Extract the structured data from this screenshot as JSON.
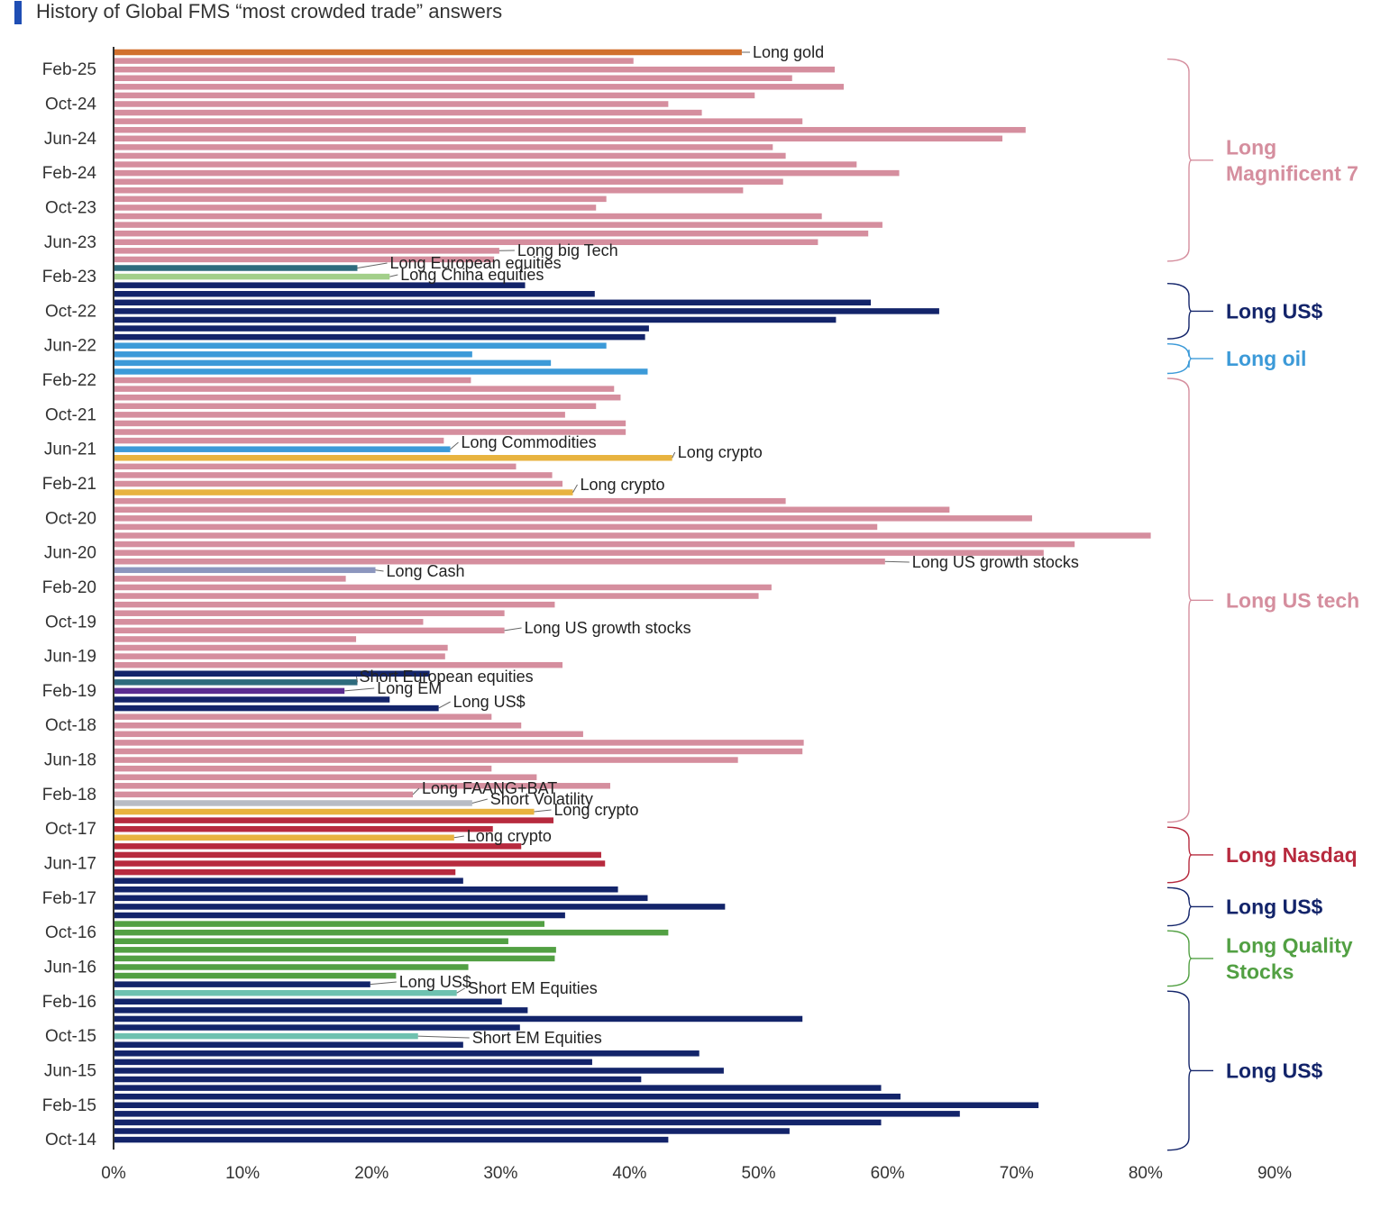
{
  "chart_data": {
    "type": "bar",
    "orientation": "horizontal",
    "title": "History of Global FMS “most crowded trade” answers",
    "xlim": [
      0,
      90
    ],
    "x_ticks": [
      "0%",
      "10%",
      "20%",
      "30%",
      "40%",
      "50%",
      "60%",
      "70%",
      "80%",
      "90%"
    ],
    "y_tick_labels": [
      "Feb-25",
      "Oct-24",
      "Jun-24",
      "Feb-24",
      "Oct-23",
      "Jun-23",
      "Feb-23",
      "Oct-22",
      "Jun-22",
      "Feb-22",
      "Oct-21",
      "Jun-21",
      "Feb-21",
      "Oct-20",
      "Jun-20",
      "Feb-20",
      "Oct-19",
      "Jun-19",
      "Feb-19",
      "Oct-18",
      "Jun-18",
      "Feb-18",
      "Oct-17",
      "Jun-17",
      "Feb-17",
      "Oct-16",
      "Jun-16",
      "Feb-16",
      "Oct-15",
      "Jun-15",
      "Feb-15",
      "Oct-14"
    ],
    "grid": false,
    "colors": {
      "pink": "#D58E9E",
      "navy": "#13246A",
      "lightblue": "#3C9AD8",
      "red": "#B72A3E",
      "green": "#52A043",
      "gold": "#E8B33F",
      "orange": "#D1702E",
      "teal": "#2E6B7D",
      "lightgreen": "#A2CF8A",
      "greyblue": "#8C96BE",
      "purple": "#5B2D91",
      "grey": "#B8BCC4",
      "tealgreen": "#6EC1B0"
    },
    "bars": [
      {
        "value": 48.7,
        "color": "orange"
      },
      {
        "value": 40.3,
        "color": "pink"
      },
      {
        "value": 55.9,
        "color": "pink"
      },
      {
        "value": 52.6,
        "color": "pink"
      },
      {
        "value": 56.6,
        "color": "pink"
      },
      {
        "value": 49.7,
        "color": "pink"
      },
      {
        "value": 43.0,
        "color": "pink"
      },
      {
        "value": 45.6,
        "color": "pink"
      },
      {
        "value": 53.4,
        "color": "pink"
      },
      {
        "value": 70.7,
        "color": "pink"
      },
      {
        "value": 68.9,
        "color": "pink"
      },
      {
        "value": 51.1,
        "color": "pink"
      },
      {
        "value": 52.1,
        "color": "pink"
      },
      {
        "value": 57.6,
        "color": "pink"
      },
      {
        "value": 60.9,
        "color": "pink"
      },
      {
        "value": 51.9,
        "color": "pink"
      },
      {
        "value": 48.8,
        "color": "pink"
      },
      {
        "value": 38.2,
        "color": "pink"
      },
      {
        "value": 37.4,
        "color": "pink"
      },
      {
        "value": 54.9,
        "color": "pink"
      },
      {
        "value": 59.6,
        "color": "pink"
      },
      {
        "value": 58.5,
        "color": "pink"
      },
      {
        "value": 54.6,
        "color": "pink"
      },
      {
        "value": 29.9,
        "color": "pink"
      },
      {
        "value": 29.5,
        "color": "pink"
      },
      {
        "value": 18.9,
        "color": "teal"
      },
      {
        "value": 21.4,
        "color": "lightgreen"
      },
      {
        "value": 31.9,
        "color": "navy"
      },
      {
        "value": 37.3,
        "color": "navy"
      },
      {
        "value": 58.7,
        "color": "navy"
      },
      {
        "value": 64.0,
        "color": "navy"
      },
      {
        "value": 56.0,
        "color": "navy"
      },
      {
        "value": 41.5,
        "color": "navy"
      },
      {
        "value": 41.2,
        "color": "navy"
      },
      {
        "value": 38.2,
        "color": "lightblue"
      },
      {
        "value": 27.8,
        "color": "lightblue"
      },
      {
        "value": 33.9,
        "color": "lightblue"
      },
      {
        "value": 41.4,
        "color": "lightblue"
      },
      {
        "value": 27.7,
        "color": "pink"
      },
      {
        "value": 38.8,
        "color": "pink"
      },
      {
        "value": 39.3,
        "color": "pink"
      },
      {
        "value": 37.4,
        "color": "pink"
      },
      {
        "value": 35.0,
        "color": "pink"
      },
      {
        "value": 39.7,
        "color": "pink"
      },
      {
        "value": 39.7,
        "color": "pink"
      },
      {
        "value": 25.6,
        "color": "pink"
      },
      {
        "value": 26.1,
        "color": "lightblue"
      },
      {
        "value": 43.3,
        "color": "gold"
      },
      {
        "value": 31.2,
        "color": "pink"
      },
      {
        "value": 34.0,
        "color": "pink"
      },
      {
        "value": 34.8,
        "color": "pink"
      },
      {
        "value": 35.6,
        "color": "gold"
      },
      {
        "value": 52.1,
        "color": "pink"
      },
      {
        "value": 64.8,
        "color": "pink"
      },
      {
        "value": 71.2,
        "color": "pink"
      },
      {
        "value": 59.2,
        "color": "pink"
      },
      {
        "value": 80.4,
        "color": "pink"
      },
      {
        "value": 74.5,
        "color": "pink"
      },
      {
        "value": 72.1,
        "color": "pink"
      },
      {
        "value": 59.8,
        "color": "pink"
      },
      {
        "value": 20.3,
        "color": "greyblue"
      },
      {
        "value": 18.0,
        "color": "pink"
      },
      {
        "value": 51.0,
        "color": "pink"
      },
      {
        "value": 50.0,
        "color": "pink"
      },
      {
        "value": 34.2,
        "color": "pink"
      },
      {
        "value": 30.3,
        "color": "pink"
      },
      {
        "value": 24.0,
        "color": "pink"
      },
      {
        "value": 30.3,
        "color": "pink"
      },
      {
        "value": 18.8,
        "color": "pink"
      },
      {
        "value": 25.9,
        "color": "pink"
      },
      {
        "value": 25.7,
        "color": "pink"
      },
      {
        "value": 34.8,
        "color": "pink"
      },
      {
        "value": 24.5,
        "color": "navy"
      },
      {
        "value": 18.9,
        "color": "teal"
      },
      {
        "value": 17.9,
        "color": "purple"
      },
      {
        "value": 21.4,
        "color": "navy"
      },
      {
        "value": 25.2,
        "color": "navy"
      },
      {
        "value": 29.3,
        "color": "pink"
      },
      {
        "value": 31.6,
        "color": "pink"
      },
      {
        "value": 36.4,
        "color": "pink"
      },
      {
        "value": 53.5,
        "color": "pink"
      },
      {
        "value": 53.4,
        "color": "pink"
      },
      {
        "value": 48.4,
        "color": "pink"
      },
      {
        "value": 29.3,
        "color": "pink"
      },
      {
        "value": 32.8,
        "color": "pink"
      },
      {
        "value": 38.5,
        "color": "pink"
      },
      {
        "value": 23.2,
        "color": "pink"
      },
      {
        "value": 27.8,
        "color": "grey"
      },
      {
        "value": 32.6,
        "color": "gold"
      },
      {
        "value": 34.1,
        "color": "red"
      },
      {
        "value": 29.4,
        "color": "red"
      },
      {
        "value": 26.4,
        "color": "gold"
      },
      {
        "value": 31.6,
        "color": "red"
      },
      {
        "value": 37.8,
        "color": "red"
      },
      {
        "value": 38.1,
        "color": "red"
      },
      {
        "value": 26.5,
        "color": "red"
      },
      {
        "value": 27.1,
        "color": "navy"
      },
      {
        "value": 39.1,
        "color": "navy"
      },
      {
        "value": 41.4,
        "color": "navy"
      },
      {
        "value": 47.4,
        "color": "navy"
      },
      {
        "value": 35.0,
        "color": "navy"
      },
      {
        "value": 33.4,
        "color": "green"
      },
      {
        "value": 43.0,
        "color": "green"
      },
      {
        "value": 30.6,
        "color": "green"
      },
      {
        "value": 34.3,
        "color": "green"
      },
      {
        "value": 34.2,
        "color": "green"
      },
      {
        "value": 27.5,
        "color": "green"
      },
      {
        "value": 21.9,
        "color": "green"
      },
      {
        "value": 19.9,
        "color": "navy"
      },
      {
        "value": 26.6,
        "color": "tealgreen"
      },
      {
        "value": 30.1,
        "color": "navy"
      },
      {
        "value": 32.1,
        "color": "navy"
      },
      {
        "value": 53.4,
        "color": "navy"
      },
      {
        "value": 31.5,
        "color": "navy"
      },
      {
        "value": 23.6,
        "color": "tealgreen"
      },
      {
        "value": 27.1,
        "color": "navy"
      },
      {
        "value": 45.4,
        "color": "navy"
      },
      {
        "value": 37.1,
        "color": "navy"
      },
      {
        "value": 47.3,
        "color": "navy"
      },
      {
        "value": 40.9,
        "color": "navy"
      },
      {
        "value": 59.5,
        "color": "navy"
      },
      {
        "value": 61.0,
        "color": "navy"
      },
      {
        "value": 71.7,
        "color": "navy"
      },
      {
        "value": 65.6,
        "color": "navy"
      },
      {
        "value": 59.5,
        "color": "navy"
      },
      {
        "value": 52.4,
        "color": "navy"
      },
      {
        "value": 43.0,
        "color": "navy"
      }
    ],
    "annotations": [
      {
        "text": "Long gold",
        "bar": 0
      },
      {
        "text": "Long big Tech",
        "bar": 23
      },
      {
        "text": "Long European equities",
        "bar": 25
      },
      {
        "text": "Long China equities",
        "bar": 26
      },
      {
        "text": "Long Commodities",
        "bar": 46
      },
      {
        "text": "Long crypto",
        "bar": 47
      },
      {
        "text": "Long crypto",
        "bar": 51
      },
      {
        "text": "Long US growth stocks",
        "bar": 59
      },
      {
        "text": "Long Cash",
        "bar": 60
      },
      {
        "text": "Long US growth stocks",
        "bar": 67
      },
      {
        "text": "Short European equities",
        "bar": 73
      },
      {
        "text": "Long EM",
        "bar": 74
      },
      {
        "text": "Long US$",
        "bar": 76
      },
      {
        "text": "Long FAANG+BAT",
        "bar": 86
      },
      {
        "text": "Short Volatility",
        "bar": 87
      },
      {
        "text": "Long crypto",
        "bar": 88
      },
      {
        "text": "Long crypto",
        "bar": 91
      },
      {
        "text": "Long US$",
        "bar": 108
      },
      {
        "text": "Short EM Equities",
        "bar": 109
      },
      {
        "text": "Short EM Equities",
        "bar": 114
      }
    ],
    "groups": [
      {
        "lines": [
          "Long",
          "Magnificent 7"
        ],
        "color": "pink",
        "from_bar": 1,
        "to_bar": 24
      },
      {
        "lines": [
          "Long US$"
        ],
        "color": "navy",
        "from_bar": 27,
        "to_bar": 33
      },
      {
        "lines": [
          "Long oil"
        ],
        "color": "lightblue",
        "from_bar": 34,
        "to_bar": 37
      },
      {
        "lines": [
          "Long US tech"
        ],
        "color": "pink",
        "from_bar": 38,
        "to_bar": 89
      },
      {
        "lines": [
          "Long Nasdaq"
        ],
        "color": "red",
        "from_bar": 90,
        "to_bar": 96
      },
      {
        "lines": [
          "Long US$"
        ],
        "color": "navy",
        "from_bar": 97,
        "to_bar": 101
      },
      {
        "lines": [
          "Long Quality",
          "Stocks"
        ],
        "color": "green",
        "from_bar": 102,
        "to_bar": 108
      },
      {
        "lines": [
          "Long US$"
        ],
        "color": "navy",
        "from_bar": 109,
        "to_bar": 127
      }
    ]
  }
}
